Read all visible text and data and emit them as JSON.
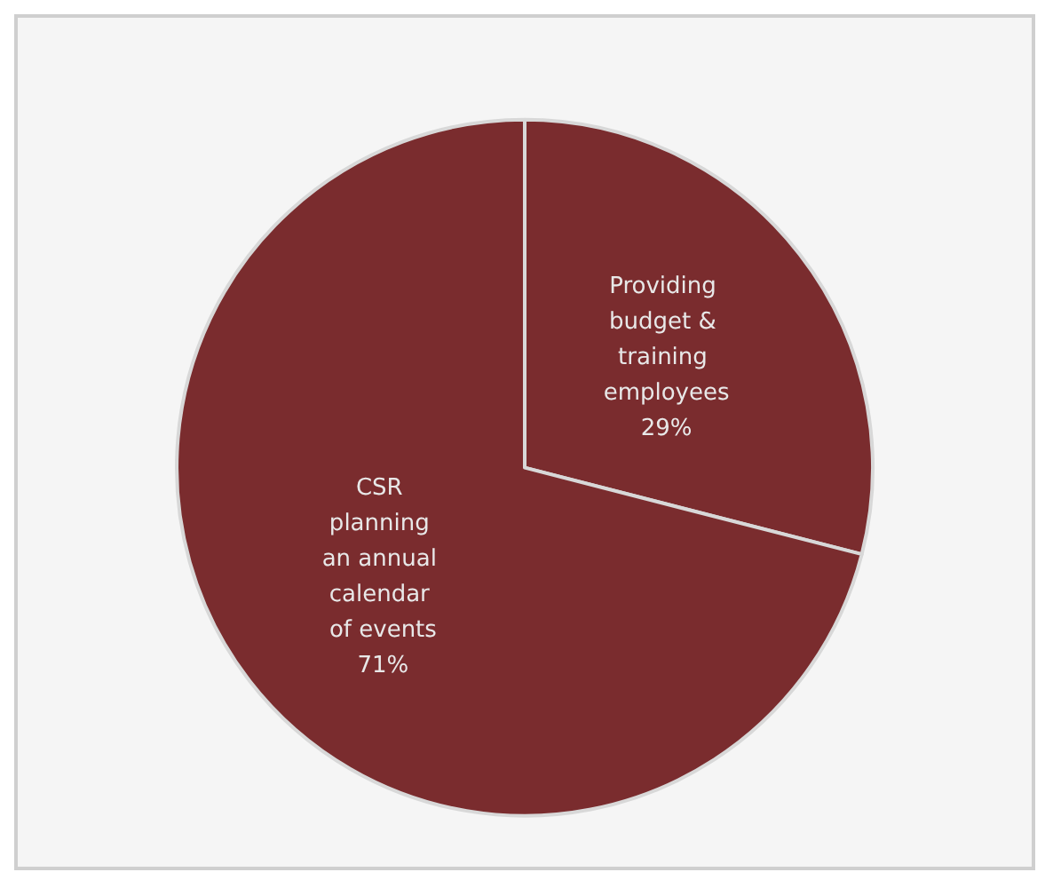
{
  "chart_data": {
    "type": "pie",
    "categories": [
      "Providing budget & training employees",
      "CSR planning an annual calendar of events"
    ],
    "values": [
      29,
      71
    ],
    "colors": [
      "#7a2c2e",
      "#7a2c2e"
    ],
    "legend": false,
    "value_labels": [
      "29%",
      "71%"
    ]
  }
}
